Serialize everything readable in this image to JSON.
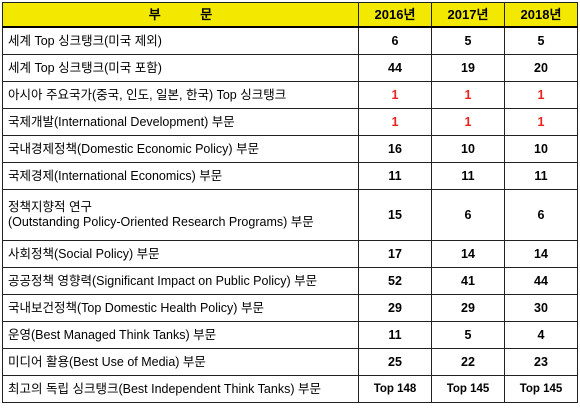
{
  "table": {
    "header": {
      "category": "부 문",
      "years": [
        "2016년",
        "2017년",
        "2018년"
      ]
    },
    "rows": [
      {
        "category": "세계 Top 싱크탱크(미국 제외)",
        "values": [
          "6",
          "5",
          "5"
        ],
        "highlight": false
      },
      {
        "category": "세계 Top 싱크탱크(미국 포함)",
        "values": [
          "44",
          "19",
          "20"
        ],
        "highlight": false
      },
      {
        "category": "아시아 주요국가(중국, 인도, 일본, 한국) Top 싱크탱크",
        "values": [
          "1",
          "1",
          "1"
        ],
        "highlight": true
      },
      {
        "category": "국제개발(International Development) 부문",
        "values": [
          "1",
          "1",
          "1"
        ],
        "highlight": true
      },
      {
        "category": "국내경제정책(Domestic Economic Policy) 부문",
        "values": [
          "16",
          "10",
          "10"
        ],
        "highlight": false
      },
      {
        "category": "국제경제(International Economics) 부문",
        "values": [
          "11",
          "11",
          "11"
        ],
        "highlight": false
      },
      {
        "category_line1": "정책지향적 연구",
        "category_line2": "(Outstanding Policy-Oriented Research Programs) 부문",
        "values": [
          "15",
          "6",
          "6"
        ],
        "highlight": false
      },
      {
        "category": "사회정책(Social Policy) 부문",
        "values": [
          "17",
          "14",
          "14"
        ],
        "highlight": false
      },
      {
        "category": "공공정책 영향력(Significant Impact on Public Policy) 부문",
        "values": [
          "52",
          "41",
          "44"
        ],
        "highlight": false
      },
      {
        "category": "국내보건정책(Top Domestic Health Policy) 부문",
        "values": [
          "29",
          "29",
          "30"
        ],
        "highlight": false
      },
      {
        "category": "운영(Best Managed Think Tanks) 부문",
        "values": [
          "11",
          "5",
          "4"
        ],
        "highlight": false
      },
      {
        "category": "미디어 활용(Best Use of Media) 부문",
        "values": [
          "25",
          "22",
          "23"
        ],
        "highlight": false
      },
      {
        "category": "최고의 독립 싱크탱크(Best Independent Think Tanks) 부문",
        "values": [
          "Top 148",
          "Top 145",
          "Top 145"
        ],
        "highlight": false
      }
    ]
  },
  "colors": {
    "header_bg": "#f2e800",
    "highlight_text": "#e8231e",
    "border": "#222222"
  }
}
